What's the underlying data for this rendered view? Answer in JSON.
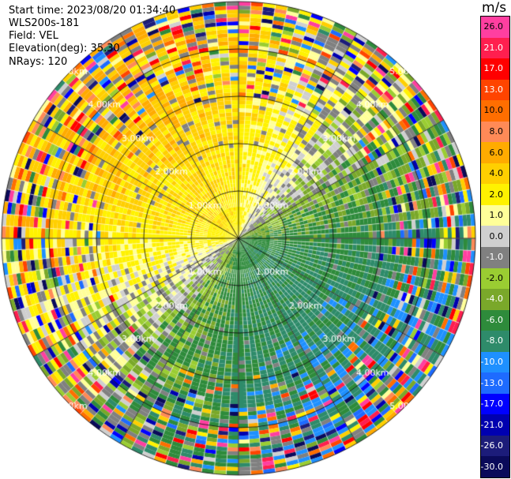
{
  "header": {
    "start_time": "Start time: 2023/08/20 01:34:40",
    "instrument": "WLS200s-181",
    "field": "Field: VEL",
    "elevation": "Elevation(deg): 35.30",
    "nrays": "NRays: 120"
  },
  "chart_data": {
    "type": "heatmap",
    "projection": "polar PPI",
    "unit_label": "m/s",
    "range_rings": [
      "1.00km",
      "2.00km",
      "3.00km",
      "4.00km",
      "5.00km"
    ],
    "rays": 120,
    "colorbar": {
      "ticks": [
        "26.0",
        "21.0",
        "17.0",
        "13.0",
        "10.0",
        "8.0",
        "6.0",
        "4.0",
        "2.0",
        "1.0",
        "0.0",
        "-1.0",
        "-2.0",
        "-4.0",
        "-6.0",
        "-8.0",
        "-10.0",
        "-13.0",
        "-17.0",
        "-21.0",
        "-26.0",
        "-30.0"
      ],
      "colors": [
        "#ff3fa0",
        "#ff1f4f",
        "#ff0000",
        "#ff4400",
        "#ff6e00",
        "#ff8a57",
        "#ffab00",
        "#ffcf00",
        "#fff200",
        "#ffff99",
        "#cfcfcf",
        "#808080",
        "#9acd32",
        "#7aa82a",
        "#2e8b3b",
        "#2e8b6a",
        "#1e90ff",
        "#1e6bff",
        "#0000ff",
        "#0000b0",
        "#1c1c7a",
        "#0a0a5a"
      ]
    },
    "background_flow": "approaching from lower-right (negative), receding toward upper-left (positive)"
  }
}
